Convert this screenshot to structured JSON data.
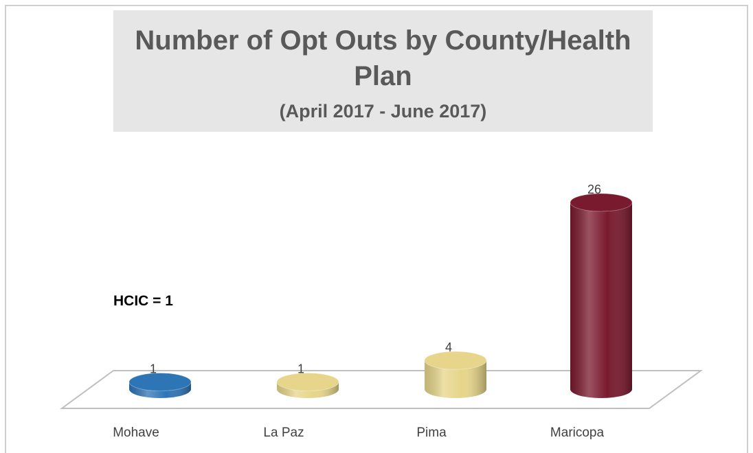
{
  "chart_data": {
    "type": "cylinder-bar",
    "title": "Number of Opt Outs by County/Health Plan",
    "subtitle": "(April 2017 - June 2017)",
    "annotation": "HCIC = 1",
    "categories": [
      "Mohave",
      "La Paz",
      "Pima",
      "Maricopa"
    ],
    "values": [
      1,
      1,
      4,
      26
    ],
    "colors": [
      "#2e75b6",
      "#e6d58a",
      "#e6d58a",
      "#7a1a2e"
    ]
  }
}
